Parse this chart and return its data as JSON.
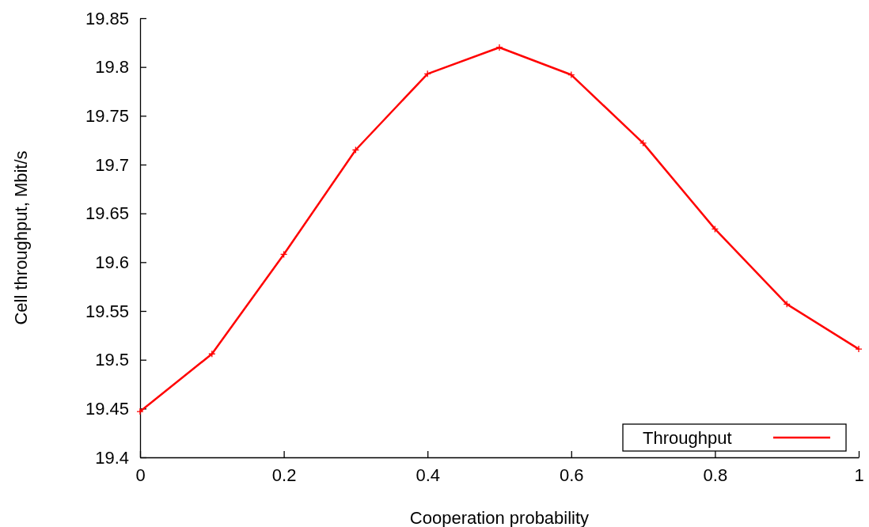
{
  "chart_data": {
    "type": "line",
    "xlabel": "Cooperation probability",
    "ylabel": "Cell throughput, Mbit/s",
    "x": [
      0,
      0.1,
      0.2,
      0.3,
      0.4,
      0.5,
      0.6,
      0.7,
      0.8,
      0.9,
      1
    ],
    "series": [
      {
        "name": "Throughput",
        "color": "#ff0000",
        "values": [
          19.447,
          19.506,
          19.608,
          19.715,
          19.793,
          19.82,
          19.792,
          19.722,
          19.634,
          19.557,
          19.511
        ]
      }
    ],
    "xlim": [
      0,
      1
    ],
    "xticks": [
      0,
      0.2,
      0.4,
      0.6,
      0.8,
      1
    ],
    "ylim": [
      19.4,
      19.85
    ],
    "yticks": [
      19.4,
      19.45,
      19.5,
      19.55,
      19.6,
      19.65,
      19.7,
      19.75,
      19.8,
      19.85
    ],
    "grid": false,
    "legend": "bottom right",
    "marker": "cross",
    "line_style": "solid"
  }
}
